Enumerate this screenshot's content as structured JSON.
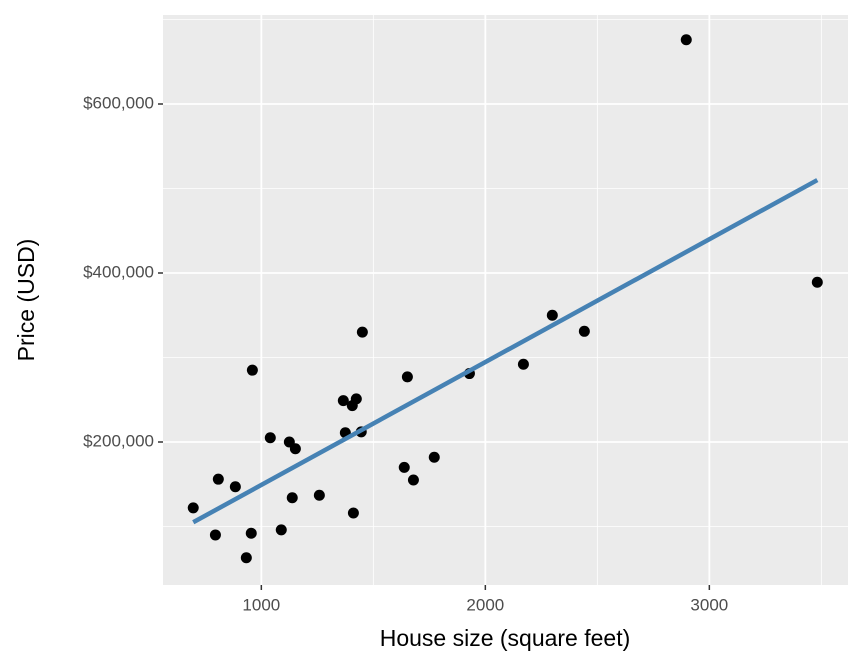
{
  "chart_data": {
    "type": "scatter",
    "x_label": "House size (square feet)",
    "y_label": "Price (USD)",
    "x": [
      696,
      795,
      808,
      884,
      933,
      955,
      960,
      1040,
      1089,
      1125,
      1138,
      1152,
      1259,
      1366,
      1375,
      1406,
      1411,
      1424,
      1446,
      1451,
      1638,
      1652,
      1679,
      1772,
      1929,
      2170,
      2299,
      2442,
      2897,
      3482
    ],
    "values": [
      122000,
      90000,
      156000,
      147000,
      63000,
      92000,
      285000,
      205000,
      96000,
      200000,
      134000,
      192000,
      137000,
      249000,
      211000,
      243000,
      116000,
      251000,
      212000,
      330000,
      170000,
      277000,
      155000,
      182000,
      281000,
      292000,
      350000,
      331000,
      676000,
      389000
    ],
    "color": "#000000",
    "trend_line": {
      "x": [
        696,
        3482
      ],
      "values": [
        105000,
        510000
      ],
      "color": "#4682b4"
    },
    "xlim": [
      561,
      3619
    ],
    "ylim": [
      30770,
      705325
    ],
    "xticks": [
      1000,
      2000,
      3000
    ],
    "yticks": [
      {
        "value": 200000,
        "label": "$200,000"
      },
      {
        "value": 400000,
        "label": "$400,000"
      },
      {
        "value": 600000,
        "label": "$600,000"
      }
    ],
    "x_minor_ticks": [
      1500,
      2500,
      3500
    ],
    "y_minor_ticks": [
      100000,
      300000,
      500000,
      700000
    ],
    "grid": true,
    "panel_color": "#ebebeb"
  }
}
